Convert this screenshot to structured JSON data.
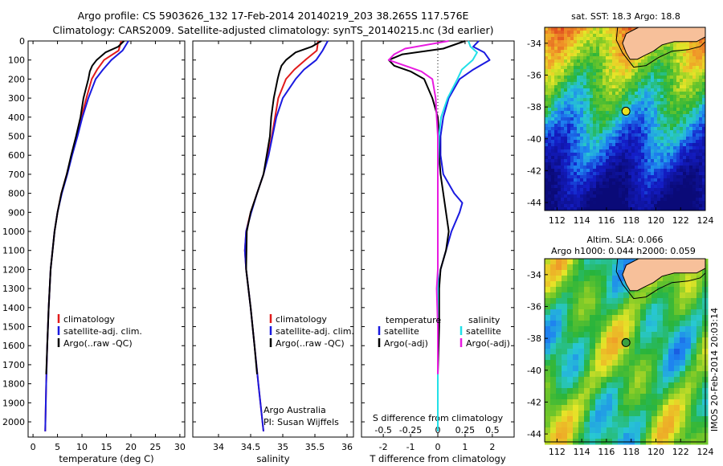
{
  "title": {
    "line1": "Argo profile: CS 5903626_132 17-Feb-2014 20140219_203 38.265S 117.576E",
    "line2": "Climatology: CARS2009. Satellite-adjusted climatology: synTS_20140215.nc (3d earlier)"
  },
  "colors": {
    "clim": "#e11b1b",
    "sat": "#1a1ae0",
    "argo": "#000000",
    "sat_s": "#22e0e8",
    "argo_s": "#e81be0",
    "land": "#f7c09a"
  },
  "chart_data": [
    {
      "id": "temperature",
      "type": "line",
      "xlabel": "temperature (deg C)",
      "ylabel": "",
      "xlim": [
        -1,
        31
      ],
      "ylim": [
        2080,
        0
      ],
      "xticks": [
        0,
        5,
        10,
        15,
        20,
        25,
        30
      ],
      "yticks": [
        0,
        100,
        200,
        300,
        400,
        500,
        600,
        700,
        800,
        900,
        1000,
        1100,
        1200,
        1300,
        1400,
        1500,
        1600,
        1700,
        1800,
        1900,
        2000
      ],
      "legend": [
        "climatology",
        "satellite-adj. clim.",
        "Argo(..raw -QC)"
      ],
      "series": [
        {
          "name": "climatology",
          "color": "clim",
          "depth": [
            0,
            50,
            100,
            150,
            200,
            300,
            400,
            500,
            600,
            700,
            800,
            900,
            1000,
            1200,
            1400,
            1600,
            1800,
            2050
          ],
          "values": [
            18.0,
            17.5,
            14.5,
            13.1,
            12.0,
            10.9,
            9.9,
            9.0,
            7.9,
            6.9,
            5.8,
            5.0,
            4.4,
            3.6,
            3.2,
            2.9,
            2.7,
            2.5
          ]
        },
        {
          "name": "satellite-adj. clim.",
          "color": "sat",
          "depth": [
            0,
            50,
            100,
            150,
            200,
            300,
            400,
            500,
            600,
            700,
            800,
            900,
            1000,
            1200,
            1400,
            1600,
            1800,
            2050
          ],
          "values": [
            19.5,
            18.3,
            16.0,
            14.3,
            12.8,
            11.3,
            10.1,
            9.1,
            8.0,
            7.0,
            5.9,
            5.0,
            4.4,
            3.6,
            3.2,
            2.9,
            2.7,
            2.5
          ]
        },
        {
          "name": "Argo(..raw -QC)",
          "color": "argo",
          "depth": [
            0,
            30,
            60,
            100,
            130,
            160,
            200,
            300,
            400,
            500,
            600,
            700,
            800,
            900,
            1000,
            1200,
            1400,
            1600,
            1750
          ],
          "values": [
            18.6,
            17.4,
            14.8,
            13.0,
            12.1,
            11.6,
            11.3,
            10.3,
            9.7,
            8.8,
            7.8,
            6.9,
            5.8,
            5.0,
            4.4,
            3.6,
            3.2,
            2.9,
            2.7
          ]
        }
      ]
    },
    {
      "id": "salinity",
      "type": "line",
      "xlabel": "salinity",
      "ylabel": "",
      "xlim": [
        33.6,
        36.1
      ],
      "ylim": [
        2080,
        0
      ],
      "xticks": [
        34,
        34.5,
        35,
        35.5,
        36
      ],
      "legend": [
        "climatology",
        "satellite-adj. clim.",
        "Argo(..raw -QC)"
      ],
      "annotation": [
        "Argo Australia",
        "PI: Susan Wijffels"
      ],
      "series": [
        {
          "name": "climatology",
          "color": "clim",
          "depth": [
            0,
            50,
            100,
            150,
            200,
            300,
            400,
            500,
            600,
            700,
            800,
            900,
            1000,
            1100,
            1200,
            1400,
            1600,
            1800,
            2050
          ],
          "values": [
            35.55,
            35.53,
            35.35,
            35.18,
            35.05,
            34.93,
            34.88,
            34.83,
            34.77,
            34.7,
            34.6,
            34.5,
            34.43,
            34.41,
            34.43,
            34.5,
            34.56,
            34.62,
            34.7
          ]
        },
        {
          "name": "satellite-adj. clim.",
          "color": "sat",
          "depth": [
            0,
            50,
            100,
            150,
            200,
            300,
            400,
            500,
            600,
            700,
            800,
            900,
            1000,
            1100,
            1200,
            1400,
            1600,
            1800,
            2050
          ],
          "values": [
            35.7,
            35.62,
            35.52,
            35.33,
            35.2,
            35.0,
            34.9,
            34.84,
            34.78,
            34.7,
            34.6,
            34.51,
            34.43,
            34.41,
            34.43,
            34.5,
            34.56,
            34.62,
            34.7
          ]
        },
        {
          "name": "Argo(..raw -QC)",
          "color": "argo",
          "depth": [
            0,
            30,
            60,
            100,
            130,
            160,
            200,
            300,
            400,
            500,
            600,
            700,
            800,
            900,
            1000,
            1200,
            1400,
            1600,
            1750
          ],
          "values": [
            35.6,
            35.45,
            35.2,
            35.05,
            34.98,
            34.95,
            34.92,
            34.86,
            34.82,
            34.8,
            34.75,
            34.7,
            34.6,
            34.5,
            34.44,
            34.43,
            34.5,
            34.56,
            34.6
          ]
        }
      ]
    },
    {
      "id": "difference",
      "type": "line",
      "xlabel": "T difference from climatology",
      "xlabel_top": "S difference from climatology",
      "xlim": [
        -2.8,
        2.8
      ],
      "ylim": [
        2080,
        0
      ],
      "xticks": [
        -2,
        -1,
        0,
        1,
        2
      ],
      "xticks_s": [
        "-0.5",
        "-0.25",
        "0",
        "0.25",
        "0.5"
      ],
      "legend_headers": [
        "temperature",
        "salinity"
      ],
      "legend": [
        "satellite",
        "Argo(-adj)",
        "satellite",
        "Argo(-adj)"
      ],
      "series": [
        {
          "name": "satellite",
          "color": "sat",
          "depth": [
            0,
            30,
            60,
            100,
            150,
            200,
            300,
            400,
            500,
            600,
            700,
            800,
            850,
            900,
            1000,
            1100,
            1200,
            1300,
            1400,
            1700,
            2050
          ],
          "values": [
            1.5,
            1.3,
            1.7,
            1.9,
            1.3,
            0.8,
            0.4,
            0.2,
            0.1,
            0.1,
            0.2,
            0.6,
            0.9,
            0.8,
            0.5,
            0.3,
            0.1,
            0.02,
            0.0,
            0.0,
            0.0
          ]
        },
        {
          "name": "Argo(-adj)",
          "color": "argo",
          "depth": [
            0,
            40,
            70,
            100,
            130,
            160,
            200,
            300,
            400,
            500,
            600,
            700,
            800,
            900,
            1000,
            1100,
            1200,
            1300,
            1500,
            1750
          ],
          "values": [
            1.0,
            0.2,
            -1.3,
            -1.8,
            -1.6,
            -1.0,
            -0.5,
            -0.2,
            0.0,
            0.05,
            0.05,
            0.1,
            0.2,
            0.3,
            0.4,
            0.3,
            0.1,
            0.05,
            0.05,
            0.0
          ]
        },
        {
          "name": "satellite",
          "color": "sat_s",
          "depth": [
            0,
            30,
            60,
            100,
            150,
            200,
            300,
            400,
            500,
            700,
            900,
            1200,
            1500,
            2050
          ],
          "values": [
            0.28,
            0.3,
            0.36,
            0.32,
            0.22,
            0.18,
            0.09,
            0.03,
            0.01,
            0.0,
            0.0,
            0.0,
            0.0,
            0.0
          ]
        },
        {
          "name": "Argo(-adj)",
          "color": "argo_s",
          "depth": [
            0,
            40,
            70,
            100,
            130,
            160,
            200,
            300,
            400,
            500,
            700,
            900,
            1200,
            1300,
            1500,
            1750
          ],
          "values": [
            0.1,
            -0.3,
            -0.4,
            -0.45,
            -0.3,
            -0.15,
            -0.05,
            -0.02,
            -0.01,
            0.0,
            0.0,
            0.0,
            0.0,
            -0.01,
            0.0,
            0.0
          ]
        }
      ]
    },
    {
      "id": "sst-map",
      "type": "heatmap",
      "title": "sat. SST: 18.3  Argo: 18.8",
      "xlim": [
        111,
        124
      ],
      "ylim": [
        -44.5,
        -33
      ],
      "xticks": [
        112,
        114,
        116,
        118,
        120,
        122,
        124
      ],
      "yticks": [
        -34,
        -36,
        -38,
        -40,
        -42,
        -44
      ],
      "marker": {
        "lon": 117.576,
        "lat": -38.265
      }
    },
    {
      "id": "sla-map",
      "type": "heatmap",
      "title": "Altim. SLA: 0.066",
      "subtitle": "Argo h1000: 0.044  h2000: 0.059",
      "xlim": [
        111,
        124
      ],
      "ylim": [
        -44.5,
        -33
      ],
      "xticks": [
        112,
        114,
        116,
        118,
        120,
        122,
        124
      ],
      "yticks": [
        -34,
        -36,
        -38,
        -40,
        -42,
        -44
      ],
      "marker": {
        "lon": 117.576,
        "lat": -38.265
      }
    }
  ],
  "credit": "IMOS 20-Feb-2014 20:03:14"
}
